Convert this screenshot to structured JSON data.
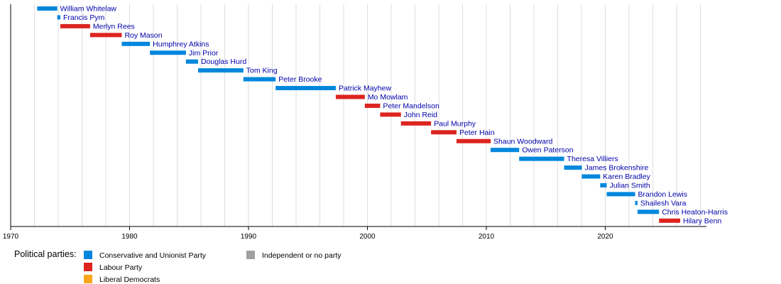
{
  "chart_data": {
    "type": "timeline",
    "x_unit": "year",
    "xlim": [
      1970,
      2028.5
    ],
    "x_ticks": [
      1970,
      1980,
      1990,
      2000,
      2010,
      2020
    ],
    "grid": "vertical lines every 2 years",
    "legend_title": "Political parties:",
    "parties": [
      {
        "id": "con",
        "name": "Conservative and Unionist Party",
        "color": "#0087DC"
      },
      {
        "id": "lab",
        "name": "Labour Party",
        "color": "#DC241F"
      },
      {
        "id": "ld",
        "name": "Liberal Democrats",
        "color": "#FAA61A"
      },
      {
        "id": "ind",
        "name": "Independent or no party",
        "color": "#A0A0A0"
      }
    ],
    "terms": [
      {
        "name": "William Whitelaw",
        "party": "con",
        "start": 1972.23,
        "end": 1973.92
      },
      {
        "name": "Francis Pym",
        "party": "con",
        "start": 1973.92,
        "end": 1974.18
      },
      {
        "name": "Merlyn Rees",
        "party": "lab",
        "start": 1974.18,
        "end": 1976.68
      },
      {
        "name": "Roy Mason",
        "party": "lab",
        "start": 1976.68,
        "end": 1979.34
      },
      {
        "name": "Humphrey Atkins",
        "party": "con",
        "start": 1979.34,
        "end": 1981.71
      },
      {
        "name": "Jim Prior",
        "party": "con",
        "start": 1981.71,
        "end": 1984.74
      },
      {
        "name": "Douglas Hurd",
        "party": "con",
        "start": 1984.74,
        "end": 1985.76
      },
      {
        "name": "Tom King",
        "party": "con",
        "start": 1985.76,
        "end": 1989.57
      },
      {
        "name": "Peter Brooke",
        "party": "con",
        "start": 1989.57,
        "end": 1992.28
      },
      {
        "name": "Patrick Mayhew",
        "party": "con",
        "start": 1992.28,
        "end": 1997.34
      },
      {
        "name": "Mo Mowlam",
        "party": "lab",
        "start": 1997.34,
        "end": 1999.78
      },
      {
        "name": "Peter Mandelson",
        "party": "lab",
        "start": 1999.78,
        "end": 2001.07
      },
      {
        "name": "John Reid",
        "party": "lab",
        "start": 2001.07,
        "end": 2002.82
      },
      {
        "name": "Paul Murphy",
        "party": "lab",
        "start": 2002.82,
        "end": 2005.35
      },
      {
        "name": "Peter Hain",
        "party": "lab",
        "start": 2005.35,
        "end": 2007.49
      },
      {
        "name": "Shaun Woodward",
        "party": "lab",
        "start": 2007.49,
        "end": 2010.36
      },
      {
        "name": "Owen Paterson",
        "party": "con",
        "start": 2010.36,
        "end": 2012.76
      },
      {
        "name": "Theresa Villiers",
        "party": "con",
        "start": 2012.76,
        "end": 2016.54
      },
      {
        "name": "James Brokenshire",
        "party": "con",
        "start": 2016.54,
        "end": 2018.03
      },
      {
        "name": "Karen Bradley",
        "party": "con",
        "start": 2018.03,
        "end": 2019.57
      },
      {
        "name": "Julian Smith",
        "party": "con",
        "start": 2019.57,
        "end": 2020.12
      },
      {
        "name": "Brandon Lewis",
        "party": "con",
        "start": 2020.12,
        "end": 2022.51
      },
      {
        "name": "Shailesh Vara",
        "party": "con",
        "start": 2022.51,
        "end": 2022.71
      },
      {
        "name": "Chris Heaton-Harris",
        "party": "con",
        "start": 2022.71,
        "end": 2024.52
      },
      {
        "name": "Hilary Benn",
        "party": "lab",
        "start": 2024.52,
        "end": 2026.3
      }
    ]
  }
}
